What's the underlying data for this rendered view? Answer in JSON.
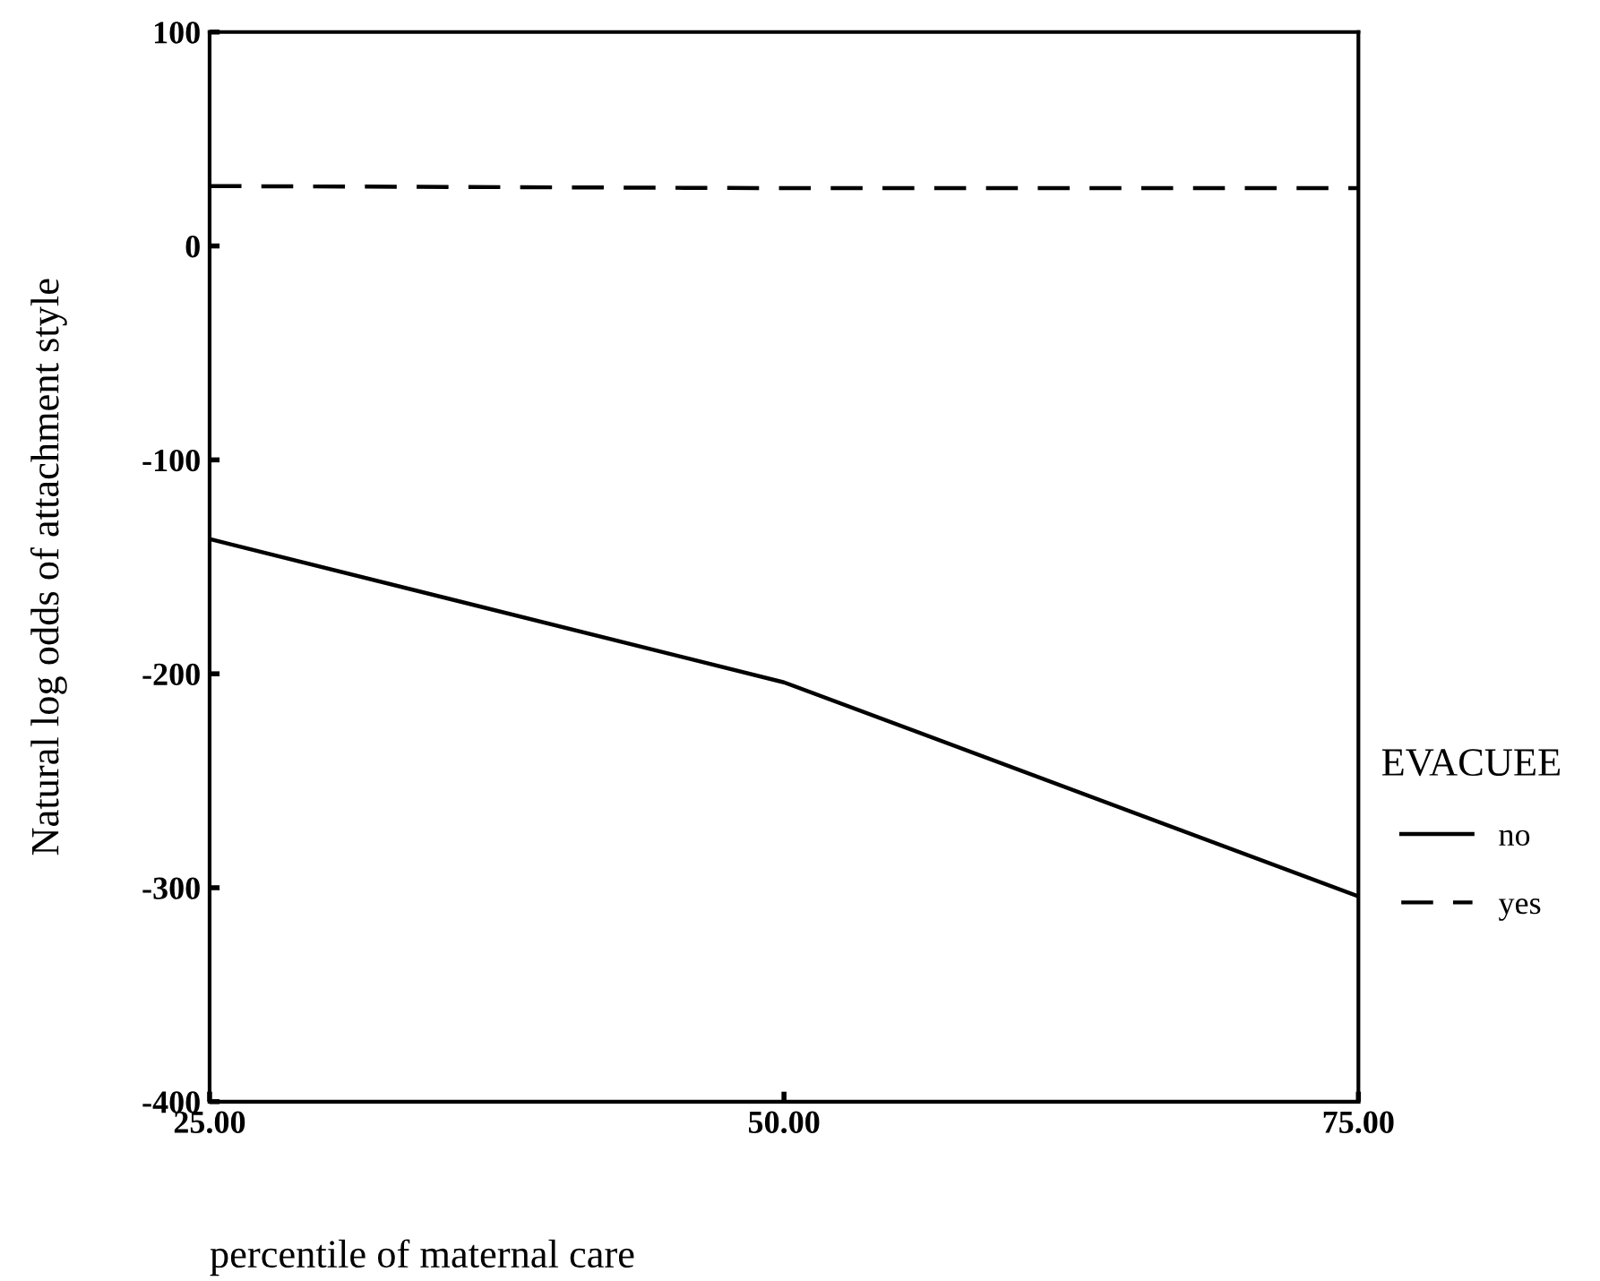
{
  "chart_data": {
    "type": "line",
    "xlabel": "percentile of maternal care",
    "ylabel": "Natural log odds of attachment style",
    "legend_title": "EVACUEE",
    "x": [
      25,
      50,
      75
    ],
    "series": [
      {
        "name": "no",
        "color": "#000000",
        "values": [
          -137,
          -204,
          -304
        ],
        "line_style": "solid"
      },
      {
        "name": "yes",
        "color": "#000000",
        "values": [
          28,
          27,
          27
        ],
        "line_style": "dashed"
      }
    ],
    "xlim": [
      25,
      75
    ],
    "xticks": [
      {
        "value": 25,
        "label": "25.00"
      },
      {
        "value": 50,
        "label": "50.00"
      },
      {
        "value": 75,
        "label": "75.00"
      }
    ],
    "ylim": [
      -400,
      100
    ],
    "yticks": [
      -400,
      -300,
      -200,
      -100,
      0,
      100
    ],
    "grid": false,
    "legend": "right",
    "marker": "none"
  }
}
